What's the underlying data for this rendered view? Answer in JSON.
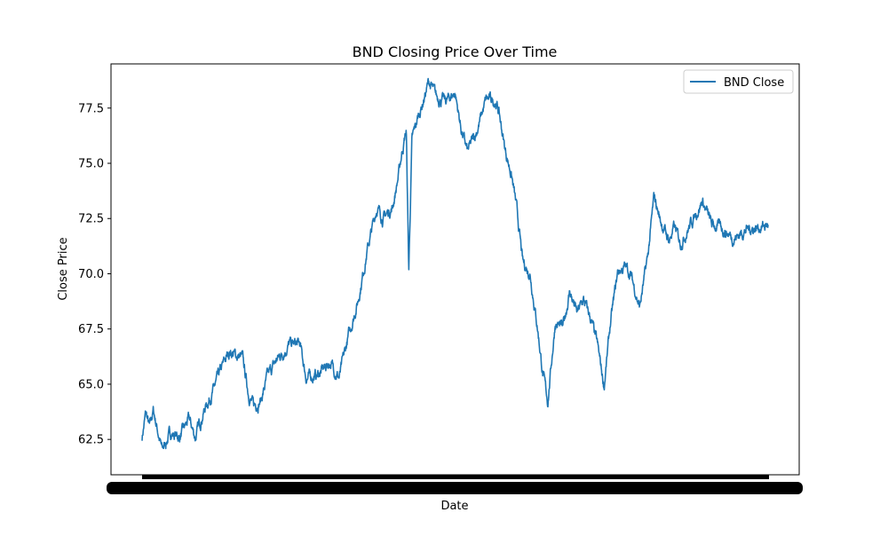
{
  "chart_data": {
    "type": "line",
    "title": "BND Closing Price Over Time",
    "xlabel": "Date",
    "ylabel": "Close Price",
    "ylim": [
      60.9,
      79.5
    ],
    "yticks": [
      62.5,
      65.0,
      67.5,
      70.0,
      72.5,
      75.0,
      77.5
    ],
    "ytick_labels": [
      "62.5",
      "65.0",
      "67.5",
      "70.0",
      "72.5",
      "75.0",
      "77.5"
    ],
    "grid": false,
    "legend": {
      "position": "upper-right",
      "entries": [
        "BND Close"
      ]
    },
    "series": [
      {
        "name": "BND Close",
        "color": "#1f77b4",
        "keypoints": [
          [
            0.0,
            62.6
          ],
          [
            0.006,
            63.7
          ],
          [
            0.012,
            63.0
          ],
          [
            0.018,
            63.8
          ],
          [
            0.025,
            62.9
          ],
          [
            0.032,
            62.0
          ],
          [
            0.045,
            62.8
          ],
          [
            0.06,
            62.6
          ],
          [
            0.075,
            63.4
          ],
          [
            0.085,
            62.6
          ],
          [
            0.1,
            63.9
          ],
          [
            0.115,
            64.8
          ],
          [
            0.13,
            65.9
          ],
          [
            0.14,
            66.5
          ],
          [
            0.15,
            66.3
          ],
          [
            0.16,
            66.2
          ],
          [
            0.17,
            64.6
          ],
          [
            0.178,
            64.0
          ],
          [
            0.19,
            64.3
          ],
          [
            0.2,
            65.3
          ],
          [
            0.215,
            66.1
          ],
          [
            0.235,
            66.8
          ],
          [
            0.252,
            66.8
          ],
          [
            0.262,
            65.3
          ],
          [
            0.28,
            65.4
          ],
          [
            0.3,
            66.0
          ],
          [
            0.315,
            65.3
          ],
          [
            0.33,
            67.2
          ],
          [
            0.345,
            68.8
          ],
          [
            0.36,
            71.1
          ],
          [
            0.375,
            73.0
          ],
          [
            0.385,
            72.5
          ],
          [
            0.4,
            73.0
          ],
          [
            0.41,
            74.5
          ],
          [
            0.415,
            75.5
          ],
          [
            0.422,
            76.5
          ],
          [
            0.426,
            70.1
          ],
          [
            0.431,
            76.0
          ],
          [
            0.44,
            77.0
          ],
          [
            0.45,
            77.9
          ],
          [
            0.458,
            78.7
          ],
          [
            0.47,
            78.0
          ],
          [
            0.485,
            77.8
          ],
          [
            0.5,
            78.2
          ],
          [
            0.51,
            76.5
          ],
          [
            0.52,
            75.5
          ],
          [
            0.535,
            76.5
          ],
          [
            0.55,
            77.9
          ],
          [
            0.565,
            77.8
          ],
          [
            0.57,
            77.3
          ],
          [
            0.58,
            75.6
          ],
          [
            0.59,
            74.5
          ],
          [
            0.598,
            73.0
          ],
          [
            0.608,
            70.5
          ],
          [
            0.62,
            70.0
          ],
          [
            0.632,
            67.5
          ],
          [
            0.64,
            65.5
          ],
          [
            0.648,
            64.2
          ],
          [
            0.66,
            67.8
          ],
          [
            0.672,
            67.5
          ],
          [
            0.683,
            69.2
          ],
          [
            0.695,
            68.2
          ],
          [
            0.705,
            68.8
          ],
          [
            0.716,
            68.0
          ],
          [
            0.727,
            66.8
          ],
          [
            0.738,
            64.9
          ],
          [
            0.748,
            67.7
          ],
          [
            0.76,
            70.1
          ],
          [
            0.772,
            70.3
          ],
          [
            0.78,
            70.0
          ],
          [
            0.795,
            68.5
          ],
          [
            0.808,
            70.8
          ],
          [
            0.818,
            73.5
          ],
          [
            0.828,
            72.4
          ],
          [
            0.842,
            71.5
          ],
          [
            0.85,
            72.1
          ],
          [
            0.86,
            71.4
          ],
          [
            0.875,
            72.2
          ],
          [
            0.895,
            73.3
          ],
          [
            0.91,
            72.2
          ],
          [
            0.925,
            72.1
          ],
          [
            0.945,
            71.6
          ],
          [
            0.965,
            72.0
          ],
          [
            1.0,
            72.2
          ]
        ]
      }
    ]
  }
}
